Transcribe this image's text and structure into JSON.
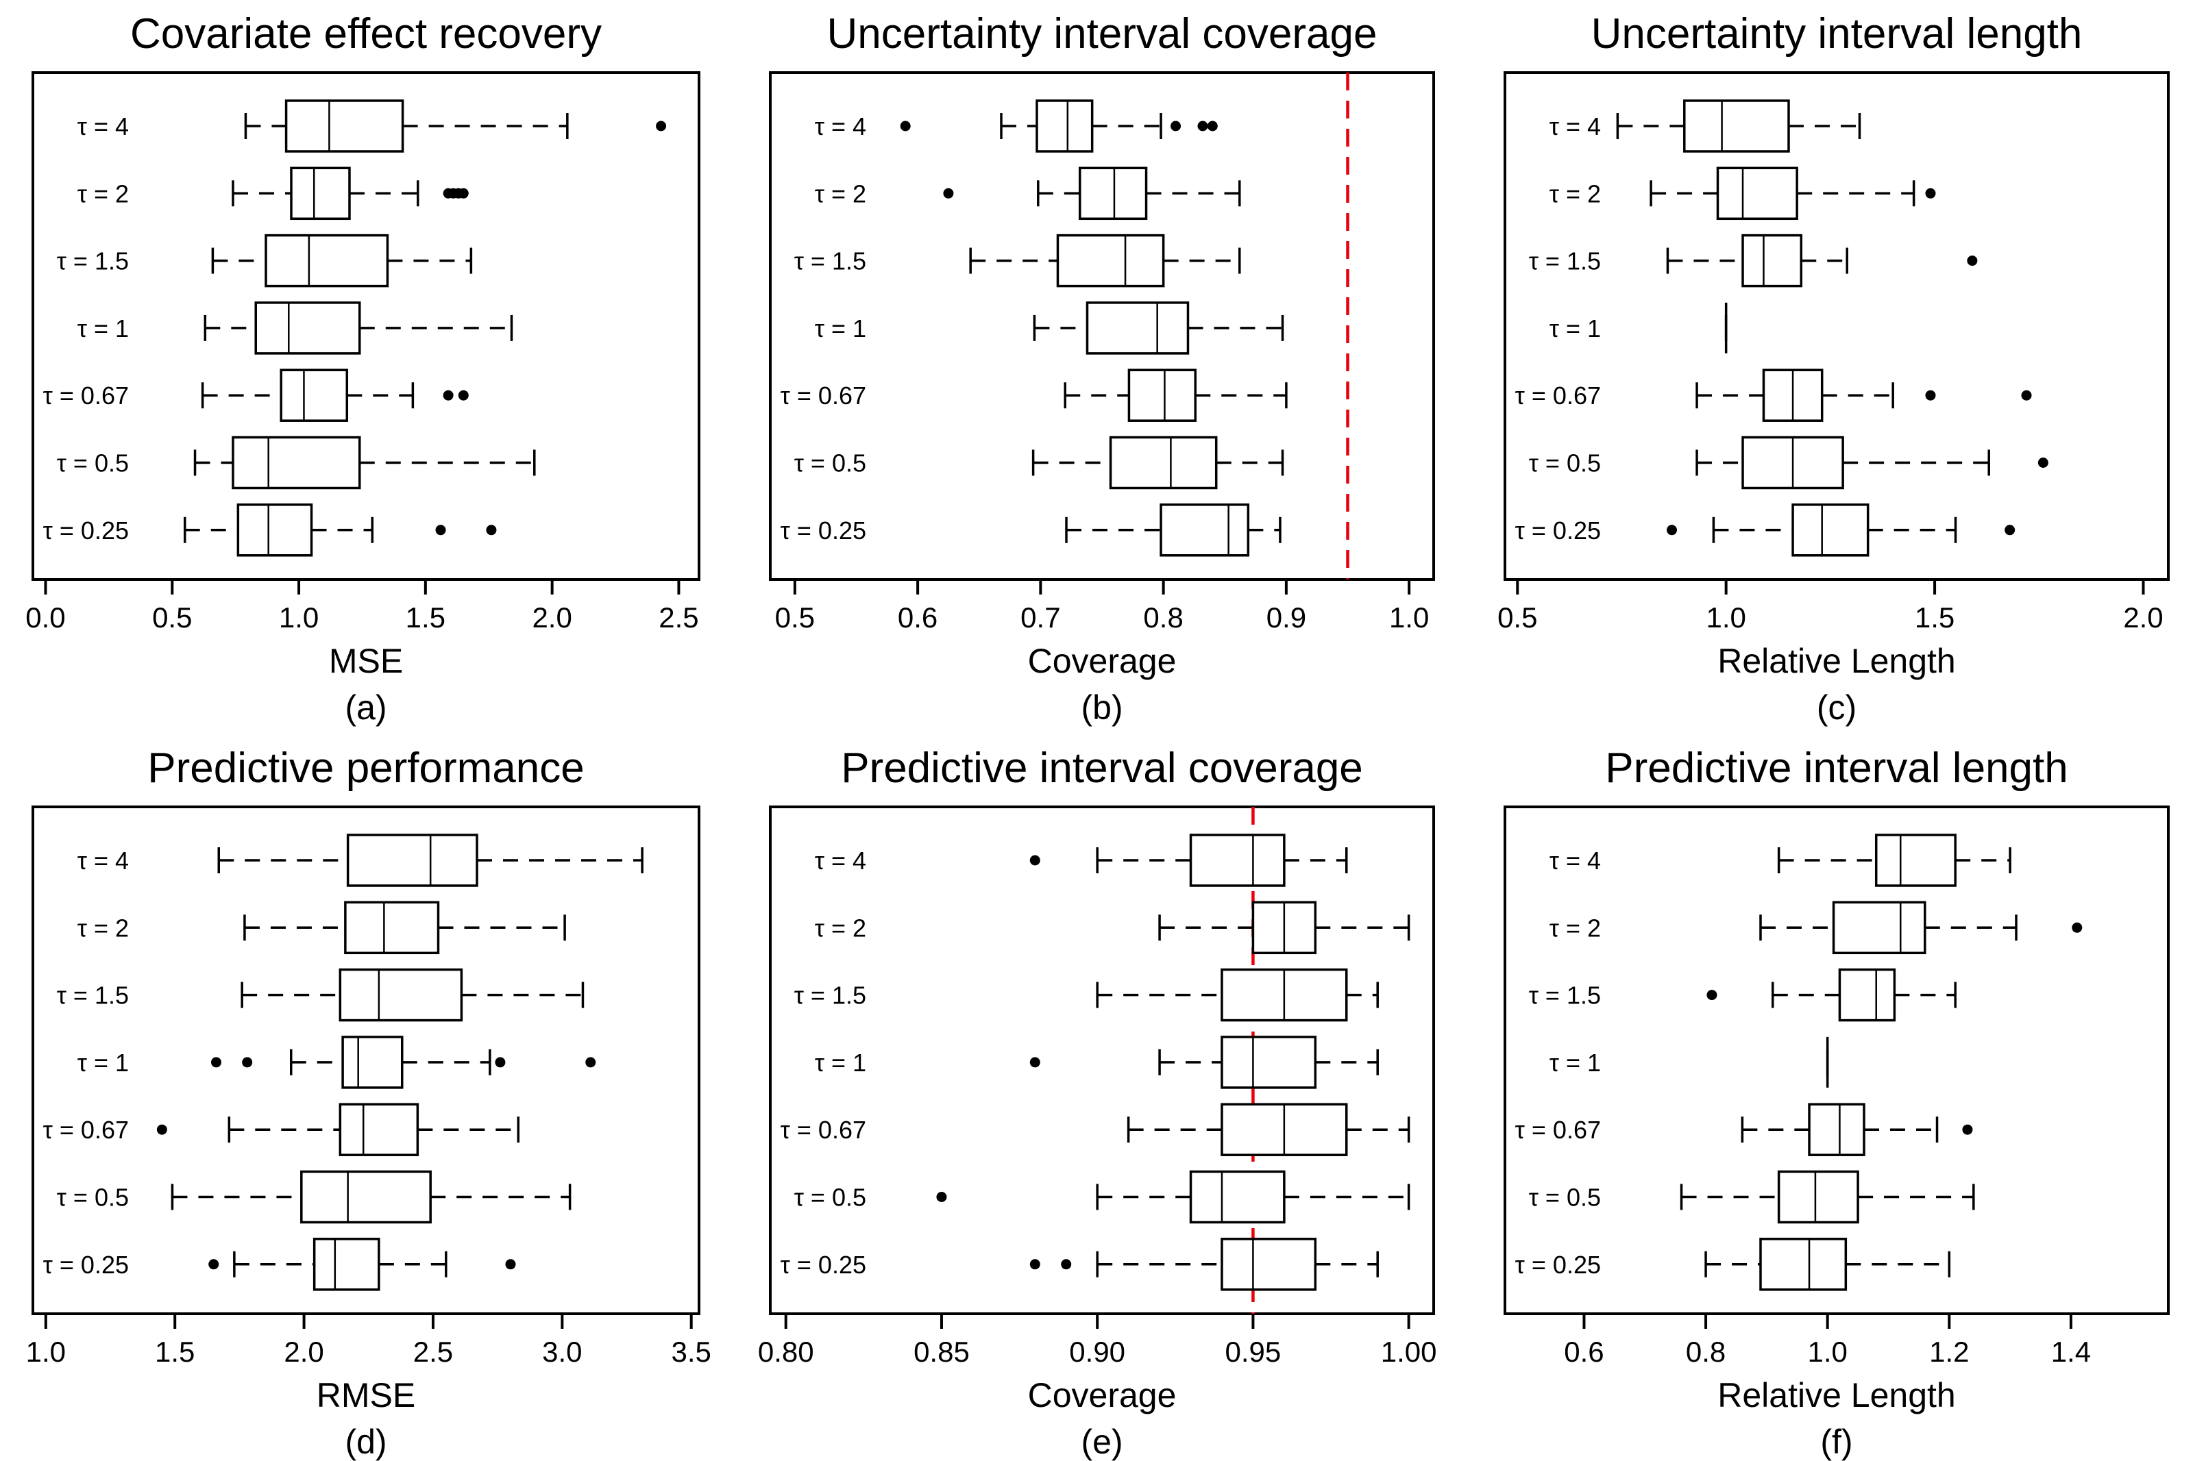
{
  "chart_data": [
    {
      "type": "boxplot",
      "panel_label": "(a)",
      "title": "Covariate effect recovery",
      "xlabel": "MSE",
      "xlim": [
        -0.05,
        2.58
      ],
      "xticks": [
        0.0,
        0.5,
        1.0,
        1.5,
        2.0,
        2.5
      ],
      "xtick_labels": [
        "0.0",
        "0.5",
        "1.0",
        "1.5",
        "2.0",
        "2.5"
      ],
      "categories": [
        "τ = 4",
        "τ = 2",
        "τ = 1.5",
        "τ = 1",
        "τ = 0.67",
        "τ = 0.5",
        "τ = 0.25"
      ],
      "boxes": [
        {
          "whisker_low": 0.79,
          "q1": 0.95,
          "median": 1.12,
          "q3": 1.41,
          "whisker_high": 2.06,
          "outliers": [
            2.43
          ]
        },
        {
          "whisker_low": 0.74,
          "q1": 0.97,
          "median": 1.06,
          "q3": 1.2,
          "whisker_high": 1.47,
          "outliers": [
            1.59,
            1.61,
            1.63,
            1.65
          ]
        },
        {
          "whisker_low": 0.66,
          "q1": 0.87,
          "median": 1.04,
          "q3": 1.35,
          "whisker_high": 1.68,
          "outliers": []
        },
        {
          "whisker_low": 0.63,
          "q1": 0.83,
          "median": 0.96,
          "q3": 1.24,
          "whisker_high": 1.84,
          "outliers": []
        },
        {
          "whisker_low": 0.62,
          "q1": 0.93,
          "median": 1.02,
          "q3": 1.19,
          "whisker_high": 1.45,
          "outliers": [
            1.59,
            1.65
          ]
        },
        {
          "whisker_low": 0.59,
          "q1": 0.74,
          "median": 0.88,
          "q3": 1.24,
          "whisker_high": 1.93,
          "outliers": []
        },
        {
          "whisker_low": 0.55,
          "q1": 0.76,
          "median": 0.88,
          "q3": 1.05,
          "whisker_high": 1.29,
          "outliers": [
            1.56,
            1.76
          ]
        }
      ]
    },
    {
      "type": "boxplot",
      "panel_label": "(b)",
      "title": "Uncertainty interval coverage",
      "xlabel": "Coverage",
      "xlim": [
        0.48,
        1.02
      ],
      "xticks": [
        0.5,
        0.6,
        0.7,
        0.8,
        0.9,
        1.0
      ],
      "xtick_labels": [
        "0.5",
        "0.6",
        "0.7",
        "0.8",
        "0.9",
        "1.0"
      ],
      "reference_line": 0.95,
      "categories": [
        "τ = 4",
        "τ = 2",
        "τ = 1.5",
        "τ = 1",
        "τ = 0.67",
        "τ = 0.5",
        "τ = 0.25"
      ],
      "boxes": [
        {
          "whisker_low": 0.668,
          "q1": 0.697,
          "median": 0.722,
          "q3": 0.742,
          "whisker_high": 0.798,
          "outliers": [
            0.59,
            0.81,
            0.832,
            0.84
          ]
        },
        {
          "whisker_low": 0.698,
          "q1": 0.732,
          "median": 0.76,
          "q3": 0.786,
          "whisker_high": 0.862,
          "outliers": [
            0.625
          ]
        },
        {
          "whisker_low": 0.643,
          "q1": 0.714,
          "median": 0.769,
          "q3": 0.8,
          "whisker_high": 0.862,
          "outliers": []
        },
        {
          "whisker_low": 0.695,
          "q1": 0.738,
          "median": 0.795,
          "q3": 0.82,
          "whisker_high": 0.897,
          "outliers": []
        },
        {
          "whisker_low": 0.72,
          "q1": 0.772,
          "median": 0.801,
          "q3": 0.826,
          "whisker_high": 0.9,
          "outliers": []
        },
        {
          "whisker_low": 0.694,
          "q1": 0.757,
          "median": 0.806,
          "q3": 0.843,
          "whisker_high": 0.897,
          "outliers": []
        },
        {
          "whisker_low": 0.721,
          "q1": 0.798,
          "median": 0.853,
          "q3": 0.869,
          "whisker_high": 0.895,
          "outliers": []
        }
      ]
    },
    {
      "type": "boxplot",
      "panel_label": "(c)",
      "title": "Uncertainty interval length",
      "xlabel": "Relative Length",
      "xlim": [
        0.47,
        2.06
      ],
      "xticks": [
        0.5,
        1.0,
        1.5,
        2.0
      ],
      "xtick_labels": [
        "0.5",
        "1.0",
        "1.5",
        "2.0"
      ],
      "categories": [
        "τ = 4",
        "τ = 2",
        "τ = 1.5",
        "τ = 1",
        "τ = 0.67",
        "τ = 0.5",
        "τ = 0.25"
      ],
      "boxes": [
        {
          "whisker_low": 0.74,
          "q1": 0.9,
          "median": 0.99,
          "q3": 1.15,
          "whisker_high": 1.32,
          "outliers": []
        },
        {
          "whisker_low": 0.82,
          "q1": 0.98,
          "median": 1.04,
          "q3": 1.17,
          "whisker_high": 1.45,
          "outliers": [
            1.49
          ]
        },
        {
          "whisker_low": 0.86,
          "q1": 1.04,
          "median": 1.09,
          "q3": 1.18,
          "whisker_high": 1.29,
          "outliers": [
            1.59
          ]
        },
        {
          "whisker_low": 1.0,
          "q1": 1.0,
          "median": 1.0,
          "q3": 1.0,
          "whisker_high": 1.0,
          "outliers": []
        },
        {
          "whisker_low": 0.93,
          "q1": 1.09,
          "median": 1.16,
          "q3": 1.23,
          "whisker_high": 1.4,
          "outliers": [
            1.49,
            1.72
          ]
        },
        {
          "whisker_low": 0.93,
          "q1": 1.04,
          "median": 1.16,
          "q3": 1.28,
          "whisker_high": 1.63,
          "outliers": [
            1.76
          ]
        },
        {
          "whisker_low": 0.97,
          "q1": 1.16,
          "median": 1.23,
          "q3": 1.34,
          "whisker_high": 1.55,
          "outliers": [
            0.87,
            1.68
          ]
        }
      ]
    },
    {
      "type": "boxplot",
      "panel_label": "(d)",
      "title": "Predictive performance",
      "xlabel": "RMSE",
      "xlim": [
        0.95,
        3.53
      ],
      "xticks": [
        1.0,
        1.5,
        2.0,
        2.5,
        3.0,
        3.5
      ],
      "xtick_labels": [
        "1.0",
        "1.5",
        "2.0",
        "2.5",
        "3.0",
        "3.5"
      ],
      "categories": [
        "τ = 4",
        "τ = 2",
        "τ = 1.5",
        "τ = 1",
        "τ = 0.67",
        "τ = 0.5",
        "τ = 0.25"
      ],
      "boxes": [
        {
          "whisker_low": 1.67,
          "q1": 2.17,
          "median": 2.49,
          "q3": 2.67,
          "whisker_high": 3.31,
          "outliers": []
        },
        {
          "whisker_low": 1.77,
          "q1": 2.16,
          "median": 2.31,
          "q3": 2.52,
          "whisker_high": 3.01,
          "outliers": []
        },
        {
          "whisker_low": 1.76,
          "q1": 2.14,
          "median": 2.29,
          "q3": 2.61,
          "whisker_high": 3.08,
          "outliers": []
        },
        {
          "whisker_low": 1.95,
          "q1": 2.15,
          "median": 2.21,
          "q3": 2.38,
          "whisker_high": 2.72,
          "outliers": [
            1.66,
            1.78,
            2.76,
            3.11
          ]
        },
        {
          "whisker_low": 1.71,
          "q1": 2.14,
          "median": 2.23,
          "q3": 2.44,
          "whisker_high": 2.83,
          "outliers": [
            1.45
          ]
        },
        {
          "whisker_low": 1.49,
          "q1": 1.99,
          "median": 2.17,
          "q3": 2.49,
          "whisker_high": 3.03,
          "outliers": []
        },
        {
          "whisker_low": 1.73,
          "q1": 2.04,
          "median": 2.12,
          "q3": 2.29,
          "whisker_high": 2.55,
          "outliers": [
            1.65,
            2.8
          ]
        }
      ]
    },
    {
      "type": "boxplot",
      "panel_label": "(e)",
      "title": "Predictive interval coverage",
      "xlabel": "Coverage",
      "xlim": [
        0.795,
        1.008
      ],
      "xticks": [
        0.8,
        0.85,
        0.9,
        0.95,
        1.0
      ],
      "xtick_labels": [
        "0.80",
        "0.85",
        "0.90",
        "0.95",
        "1.00"
      ],
      "reference_line": 0.95,
      "categories": [
        "τ = 4",
        "τ = 2",
        "τ = 1.5",
        "τ = 1",
        "τ = 0.67",
        "τ = 0.5",
        "τ = 0.25"
      ],
      "boxes": [
        {
          "whisker_low": 0.9,
          "q1": 0.93,
          "median": 0.95,
          "q3": 0.96,
          "whisker_high": 0.98,
          "outliers": [
            0.88
          ]
        },
        {
          "whisker_low": 0.92,
          "q1": 0.95,
          "median": 0.96,
          "q3": 0.97,
          "whisker_high": 1.0,
          "outliers": []
        },
        {
          "whisker_low": 0.9,
          "q1": 0.94,
          "median": 0.96,
          "q3": 0.98,
          "whisker_high": 0.99,
          "outliers": []
        },
        {
          "whisker_low": 0.92,
          "q1": 0.94,
          "median": 0.95,
          "q3": 0.97,
          "whisker_high": 0.99,
          "outliers": [
            0.88
          ]
        },
        {
          "whisker_low": 0.91,
          "q1": 0.94,
          "median": 0.96,
          "q3": 0.98,
          "whisker_high": 1.0,
          "outliers": []
        },
        {
          "whisker_low": 0.9,
          "q1": 0.93,
          "median": 0.94,
          "q3": 0.96,
          "whisker_high": 1.0,
          "outliers": [
            0.85
          ]
        },
        {
          "whisker_low": 0.9,
          "q1": 0.94,
          "median": 0.95,
          "q3": 0.97,
          "whisker_high": 0.99,
          "outliers": [
            0.88,
            0.89
          ]
        }
      ]
    },
    {
      "type": "boxplot",
      "panel_label": "(f)",
      "title": "Predictive interval length",
      "xlabel": "Relative Length",
      "xlim": [
        0.47,
        1.56
      ],
      "xticks": [
        0.6,
        0.8,
        1.0,
        1.2,
        1.4
      ],
      "xtick_labels": [
        "0.6",
        "0.8",
        "1.0",
        "1.2",
        "1.4"
      ],
      "categories": [
        "τ = 4",
        "τ = 2",
        "τ = 1.5",
        "τ = 1",
        "τ = 0.67",
        "τ = 0.5",
        "τ = 0.25"
      ],
      "boxes": [
        {
          "whisker_low": 0.92,
          "q1": 1.08,
          "median": 1.12,
          "q3": 1.21,
          "whisker_high": 1.3,
          "outliers": []
        },
        {
          "whisker_low": 0.89,
          "q1": 1.01,
          "median": 1.12,
          "q3": 1.16,
          "whisker_high": 1.31,
          "outliers": [
            1.41
          ]
        },
        {
          "whisker_low": 0.91,
          "q1": 1.02,
          "median": 1.08,
          "q3": 1.11,
          "whisker_high": 1.21,
          "outliers": [
            0.81
          ]
        },
        {
          "whisker_low": 1.0,
          "q1": 1.0,
          "median": 1.0,
          "q3": 1.0,
          "whisker_high": 1.0,
          "outliers": []
        },
        {
          "whisker_low": 0.86,
          "q1": 0.97,
          "median": 1.02,
          "q3": 1.06,
          "whisker_high": 1.18,
          "outliers": [
            1.23
          ]
        },
        {
          "whisker_low": 0.76,
          "q1": 0.92,
          "median": 0.98,
          "q3": 1.05,
          "whisker_high": 1.24,
          "outliers": []
        },
        {
          "whisker_low": 0.8,
          "q1": 0.89,
          "median": 0.97,
          "q3": 1.03,
          "whisker_high": 1.2,
          "outliers": []
        }
      ]
    }
  ],
  "colors": {
    "axis": "#000000",
    "reference_line": "#e8000b",
    "box_fill": "#ffffff"
  }
}
